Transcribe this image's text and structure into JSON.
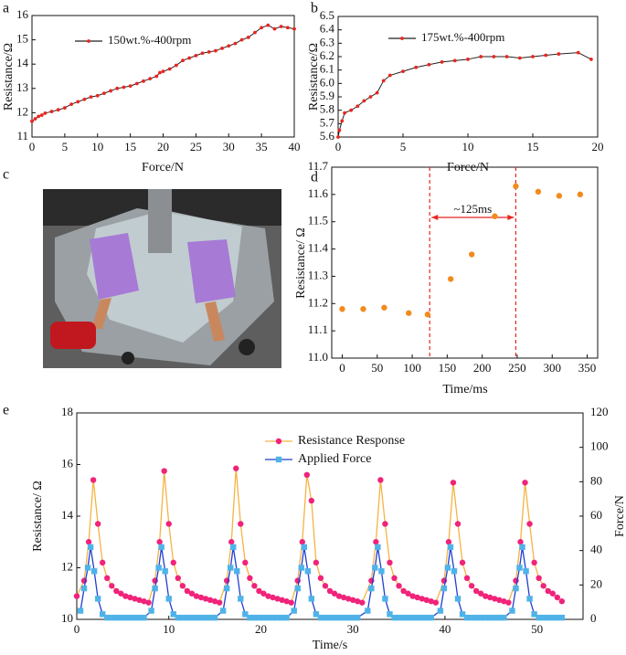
{
  "chart_data": [
    {
      "type": "line",
      "panel_label": "a",
      "xlabel": "Force/N",
      "ylabel": "Resistance/Ω",
      "xlim": [
        0,
        40
      ],
      "ylim": [
        11,
        16
      ],
      "xticks": [
        0,
        5,
        10,
        15,
        20,
        25,
        30,
        35,
        40
      ],
      "yticks": [
        11,
        12,
        13,
        14,
        15,
        16
      ],
      "series": [
        {
          "name": "150wt.%-400rpm",
          "color": "#e8251f",
          "line_color": "#222222",
          "marker": "circle",
          "x": [
            0,
            0.5,
            1,
            1.5,
            2,
            3,
            4,
            5,
            6,
            7,
            8,
            9,
            10,
            11,
            12,
            13,
            14,
            15,
            16,
            17,
            18,
            19,
            19.5,
            20,
            21,
            22,
            23,
            24,
            25,
            26,
            27,
            28,
            29,
            30,
            31,
            32,
            33,
            34,
            35,
            36,
            37,
            38,
            39,
            40
          ],
          "values": [
            11.65,
            11.75,
            11.85,
            11.9,
            11.98,
            12.05,
            12.12,
            12.2,
            12.35,
            12.45,
            12.55,
            12.65,
            12.7,
            12.8,
            12.9,
            13.0,
            13.05,
            13.1,
            13.2,
            13.3,
            13.4,
            13.5,
            13.65,
            13.7,
            13.8,
            13.95,
            14.15,
            14.25,
            14.35,
            14.45,
            14.5,
            14.55,
            14.65,
            14.75,
            14.85,
            15.0,
            15.1,
            15.3,
            15.5,
            15.6,
            15.45,
            15.55,
            15.5,
            15.45
          ]
        }
      ]
    },
    {
      "type": "line",
      "panel_label": "b",
      "xlabel": "Force/N",
      "ylabel": "Resistance/Ω",
      "xlim": [
        0,
        20
      ],
      "ylim": [
        5.6,
        6.5
      ],
      "xticks": [
        0,
        5,
        10,
        15,
        20
      ],
      "yticks": [
        5.6,
        5.7,
        5.8,
        5.9,
        {
          "value": 6,
          "label": "6.0"
        },
        6.1,
        6.2,
        6.3,
        6.4,
        6.5
      ],
      "series": [
        {
          "name": "175wt.%-400rpm",
          "color": "#e8251f",
          "line_color": "#222222",
          "marker": "circle",
          "x": [
            0,
            0.1,
            0.3,
            0.5,
            1,
            1.5,
            2,
            2.5,
            3,
            3.5,
            4,
            5,
            6,
            7,
            8,
            9,
            10,
            11,
            12,
            13,
            14,
            15,
            16,
            17,
            18.5,
            19.5
          ],
          "values": [
            5.6,
            5.65,
            5.72,
            5.78,
            5.8,
            5.83,
            5.87,
            5.9,
            5.93,
            6.02,
            6.06,
            6.09,
            6.12,
            6.14,
            6.16,
            6.17,
            6.18,
            6.2,
            6.2,
            6.2,
            6.19,
            6.2,
            6.21,
            6.22,
            6.23,
            6.18
          ]
        }
      ]
    },
    {
      "type": "scatter",
      "panel_label": "d",
      "xlabel": "Time/ms",
      "ylabel": "Resistance/ Ω",
      "xlim": [
        -15,
        365
      ],
      "ylim": [
        11.0,
        11.7
      ],
      "xticks": [
        0,
        50,
        100,
        150,
        200,
        250,
        300,
        350
      ],
      "yticks": [
        {
          "value": 11,
          "label": "11.0"
        },
        11.1,
        11.2,
        11.3,
        11.4,
        11.5,
        11.6,
        11.7
      ],
      "vlines": [
        125,
        248
      ],
      "vline_color": "#e8251f",
      "annotation": "~125ms",
      "series": [
        {
          "color": "#f28b1d",
          "marker": "circle",
          "x": [
            0,
            30,
            60,
            95,
            122,
            155,
            185,
            218,
            248,
            280,
            310,
            340
          ],
          "values": [
            11.18,
            11.18,
            11.185,
            11.165,
            11.16,
            11.29,
            11.38,
            11.52,
            11.63,
            11.61,
            11.595,
            11.6
          ]
        }
      ]
    },
    {
      "type": "line",
      "panel_label": "e",
      "xlabel": "Time/s",
      "ylabel": "Resistance/ Ω",
      "y2label": "Force/N",
      "xlim": [
        0,
        55
      ],
      "ylim": [
        10,
        18
      ],
      "y2lim": [
        0,
        120
      ],
      "xticks": [
        0,
        10,
        20,
        30,
        40,
        50
      ],
      "yticks": [
        10,
        12,
        14,
        16,
        18
      ],
      "y2ticks": [
        0,
        20,
        40,
        60,
        80,
        100,
        120
      ],
      "series": [
        {
          "name": "Resistance Response",
          "color": "#f0237a",
          "line_color": "#f5b342",
          "marker": "circle",
          "x": [
            0,
            0.8,
            1.3,
            1.8,
            2.3,
            2.8,
            3.3,
            3.8,
            4.3,
            4.8,
            5.3,
            5.8,
            6.3,
            6.8,
            7.3,
            7.8,
            8.5,
            9.0,
            9.5,
            10.0,
            10.5,
            11.0,
            11.5,
            12.0,
            12.5,
            13.0,
            13.5,
            14.0,
            14.5,
            15.0,
            15.5,
            16.3,
            16.8,
            17.3,
            17.8,
            18.3,
            18.8,
            19.3,
            19.8,
            20.3,
            20.8,
            21.3,
            21.8,
            22.3,
            22.8,
            23.3,
            24.0,
            24.5,
            25.0,
            25.5,
            26.0,
            26.5,
            27.0,
            27.5,
            28.0,
            28.5,
            29.0,
            29.5,
            30.0,
            30.5,
            31.0,
            32.0,
            32.5,
            33.0,
            33.5,
            34.0,
            34.5,
            35.0,
            35.5,
            36.0,
            36.5,
            37.0,
            37.5,
            38.0,
            38.5,
            39.0,
            39.9,
            40.4,
            40.9,
            41.4,
            41.9,
            42.4,
            42.9,
            43.4,
            43.9,
            44.4,
            44.9,
            45.4,
            45.9,
            46.4,
            46.9,
            47.7,
            48.2,
            48.7,
            49.2,
            49.7,
            50.2,
            50.7,
            51.2,
            51.7,
            52.2,
            52.7
          ],
          "values": [
            10.9,
            11.5,
            13.0,
            15.4,
            13.7,
            12.2,
            11.6,
            11.3,
            11.1,
            11.0,
            10.9,
            10.85,
            10.8,
            10.75,
            10.7,
            10.65,
            11.5,
            13.0,
            15.75,
            13.7,
            12.2,
            11.6,
            11.3,
            11.1,
            11.0,
            10.9,
            10.85,
            10.8,
            10.75,
            10.7,
            10.65,
            11.5,
            13.0,
            15.85,
            13.7,
            12.2,
            11.6,
            11.3,
            11.1,
            11.0,
            10.9,
            10.85,
            10.8,
            10.75,
            10.7,
            10.65,
            11.5,
            13.0,
            15.6,
            14.6,
            12.2,
            11.6,
            11.3,
            11.1,
            11.0,
            10.9,
            10.85,
            10.8,
            10.75,
            10.7,
            10.65,
            11.5,
            13.0,
            15.4,
            13.7,
            12.2,
            11.6,
            11.3,
            11.1,
            11.0,
            10.9,
            10.85,
            10.8,
            10.75,
            10.7,
            10.65,
            11.5,
            13.0,
            15.3,
            13.7,
            12.2,
            11.6,
            11.3,
            11.1,
            11.0,
            10.9,
            10.85,
            10.8,
            10.75,
            10.7,
            10.65,
            11.5,
            13.0,
            15.3,
            13.7,
            12.2,
            11.6,
            11.3,
            11.1,
            11.0,
            10.85,
            10.7
          ]
        },
        {
          "name": "Applied Force",
          "color": "#4fb3e8",
          "line_color": "#1f3fd1",
          "marker": "square",
          "axis": "y2",
          "x": [
            0.4,
            0.8,
            1.2,
            1.5,
            1.9,
            2.3,
            2.8,
            3.3,
            3.8,
            4.3,
            4.8,
            5.3,
            5.8,
            6.3,
            6.8,
            7.3,
            8.1,
            8.5,
            8.9,
            9.2,
            9.6,
            10.0,
            10.5,
            11.0,
            11.5,
            12.0,
            12.5,
            13.0,
            13.5,
            14.0,
            14.5,
            15.0,
            15.9,
            16.3,
            16.7,
            17.0,
            17.4,
            17.8,
            18.3,
            18.8,
            19.3,
            19.8,
            20.3,
            20.8,
            21.3,
            21.8,
            22.3,
            22.8,
            23.6,
            24.0,
            24.4,
            24.7,
            25.1,
            25.5,
            26.0,
            26.5,
            27.0,
            27.5,
            28.0,
            28.5,
            29.0,
            29.5,
            30.0,
            30.5,
            31.6,
            32.0,
            32.4,
            32.7,
            33.1,
            33.5,
            34.0,
            34.5,
            35.0,
            35.5,
            36.0,
            36.5,
            37.0,
            37.5,
            38.0,
            38.5,
            39.5,
            39.9,
            40.3,
            40.6,
            41.0,
            41.4,
            41.9,
            42.4,
            42.9,
            43.4,
            43.9,
            44.4,
            44.9,
            45.4,
            45.9,
            46.4,
            47.3,
            47.7,
            48.1,
            48.4,
            48.8,
            49.2,
            49.7,
            50.2,
            50.7,
            51.2,
            51.7,
            52.2,
            52.7
          ],
          "values": [
            5,
            18,
            30,
            42,
            28,
            12,
            3,
            1,
            1,
            1,
            1,
            1,
            1,
            1,
            1,
            1,
            5,
            18,
            30,
            42,
            28,
            12,
            3,
            1,
            1,
            1,
            1,
            1,
            1,
            1,
            1,
            1,
            5,
            18,
            30,
            42,
            28,
            12,
            3,
            1,
            1,
            1,
            1,
            1,
            1,
            1,
            1,
            1,
            5,
            18,
            30,
            42,
            28,
            12,
            3,
            1,
            1,
            1,
            1,
            1,
            1,
            1,
            1,
            1,
            5,
            18,
            30,
            42,
            28,
            12,
            3,
            1,
            1,
            1,
            1,
            1,
            1,
            1,
            1,
            1,
            5,
            18,
            30,
            42,
            28,
            12,
            3,
            1,
            1,
            1,
            1,
            1,
            1,
            1,
            1,
            1,
            5,
            18,
            30,
            42,
            28,
            12,
            3,
            1,
            1,
            1,
            1,
            1,
            1
          ]
        }
      ]
    }
  ],
  "figure_c": {
    "panel_label": "c"
  }
}
